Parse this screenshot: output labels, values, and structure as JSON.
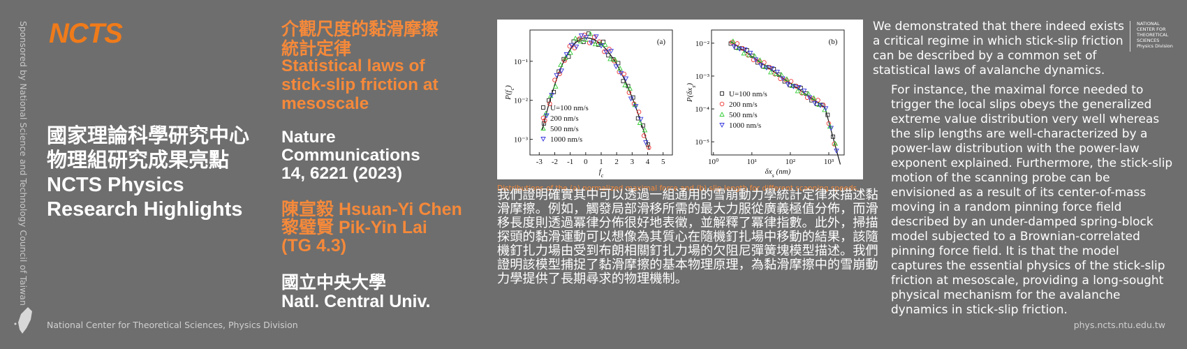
{
  "sidebar": {
    "sponsor": "Sponsored by National Science and Technology Council of Taiwan",
    "logo": "NCTS",
    "heading": [
      "國家理論科學研究中心",
      "物理組研究成果亮點",
      "NCTS Physics",
      "Research Highlights"
    ],
    "footer": "National Center for Theoretical Sciences, Physics Division"
  },
  "paper": {
    "title_zh": [
      "介觀尺度的黏滑摩擦",
      "統計定律"
    ],
    "title_en": [
      "Statistical laws of",
      "stick-slip friction at",
      "mesoscale"
    ],
    "journal": [
      "Nature",
      "Communications",
      "14, 6221 (2023)"
    ],
    "authors": [
      "陳宣毅 Hsuan-Yi Chen",
      "黎璧賢 Pik-Yin Lai",
      "(TG 4.3)"
    ],
    "affiliation": [
      "國立中央大學",
      "Natl. Central Univ."
    ]
  },
  "figure": {
    "panel_a": {
      "label": "(a)",
      "xticks": [
        "-3",
        "-2",
        "-1",
        "0",
        "1",
        "2",
        "3",
        "4",
        "5"
      ],
      "yticks": [
        "10⁻³",
        "10⁻²",
        "10⁻¹"
      ],
      "xlabel": [
        "f",
        "c",
        ""
      ],
      "ylabel": [
        "P(f",
        "c",
        ")"
      ],
      "legend": [
        "U=100 nm/s",
        "200 nm/s",
        "500 nm/s",
        "1000 nm/s"
      ]
    },
    "panel_b": {
      "label": "(b)",
      "xticks": [
        "10⁰",
        "10¹",
        "10²",
        "10³"
      ],
      "yticks": [
        "10⁻⁵",
        "10⁻⁴",
        "10⁻³",
        "10⁻²"
      ],
      "xlabel": [
        "δx",
        "s",
        " (nm)"
      ],
      "ylabel": [
        "P(δx",
        "s",
        ")"
      ],
      "legend": [
        "U=100 nm/s",
        "200 nm/s",
        "500 nm/s",
        "1000 nm/s"
      ]
    },
    "caption": "Distributions of the (a) normalized maximal force  and (b) slip length for different scanning speeds."
  },
  "summary_zh": "我們證明確實其中可以透過一組通用的雪崩動力學統計定律來描述黏滑摩擦。例如，觸發局部滑移所需的最大力服從廣義極值分佈，而滑移長度則透過冪律分佈很好地表徵，並解釋了冪律指數。此外，掃描探頭的黏滑運動可以想像為其質心在隨機釘扎場中移動的結果，該隨機釘扎力場由受到布朗相關釘扎力場的欠阻尼彈簧塊模型描述。我們證明該模型捕捉了黏滑摩擦的基本物理原理，為黏滑摩擦中的雪崩動力學提供了長期尋求的物理機制。",
  "summary_en": [
    "We demonstrated that there indeed exists a critical regime in which stick-slip friction can be described by a common set of statistical laws of avalanche dynamics.",
    "For instance, the maximal force needed to trigger the local slips obeys the generalized extreme value distribution very well whereas the slip lengths are well-characterized by a power-law distribution with the power-law exponent explained. Furthermore, the stick-slip motion of the scanning probe can be envisioned as a result of its center-of-mass moving in a random pinning force field described by an under-damped spring-block model subjected to a Brownian-correlated pinning force field. It is that the model captures the essential physics of the stick-slip friction at mesoscale, providing a long-sought physical mechanism for the avalanche dynamics in stick-slip friction."
  ],
  "corner_logo": [
    "NATIONAL",
    "CENTER FOR",
    "THEORETICAL",
    "SCIENCES",
    "Physics Division"
  ],
  "url": "phys.ncts.ntu.edu.tw"
}
